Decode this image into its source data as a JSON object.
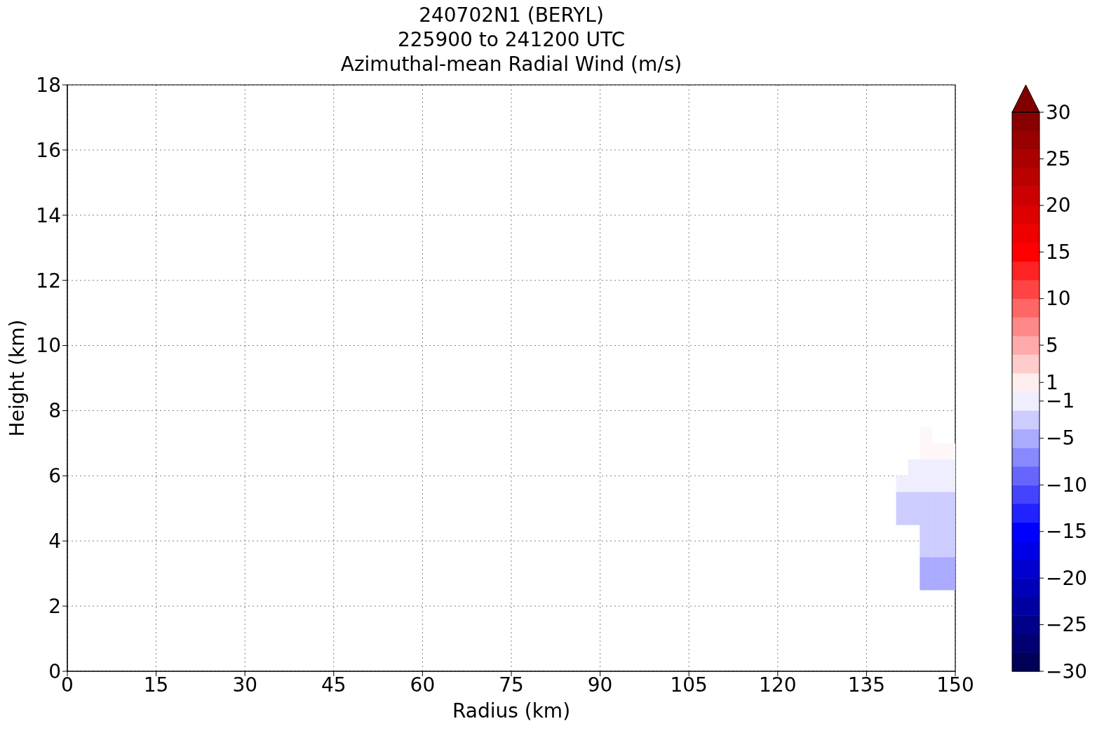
{
  "chart_data": {
    "type": "scatter",
    "title": "240702N1 (BERYL)\n225900 to 241200 UTC\nAzimuthal-mean Radial Wind (m/s)",
    "xlabel": "Radius (km)",
    "ylabel": "Height (km)",
    "marker": "square",
    "x": [
      145,
      145,
      147,
      149,
      143,
      145,
      147,
      149,
      141,
      143,
      145,
      147,
      149,
      141,
      143,
      145,
      147,
      149,
      141,
      143,
      145,
      147,
      149,
      145,
      147,
      149,
      145,
      147,
      149,
      145,
      147,
      149,
      145,
      147,
      149
    ],
    "values": [
      7.25,
      6.75,
      6.75,
      6.75,
      6.25,
      6.25,
      6.25,
      6.25,
      5.75,
      5.75,
      5.75,
      5.75,
      5.75,
      5.25,
      5.25,
      5.25,
      5.25,
      5.25,
      4.75,
      4.75,
      4.75,
      4.75,
      4.75,
      4.25,
      4.25,
      4.25,
      3.75,
      3.75,
      3.75,
      3.25,
      3.25,
      3.25,
      2.75,
      2.75,
      2.75
    ],
    "cvalues": [
      0.5,
      0.5,
      0.5,
      0.5,
      -1,
      -1,
      -1,
      -1,
      -1,
      -1,
      -1,
      -1,
      -1,
      -3,
      -3,
      -3,
      -3,
      -3,
      -3,
      -3,
      -3,
      -3,
      -3,
      -3,
      -3,
      -3,
      -3,
      -3,
      -3,
      -5,
      -5,
      -5,
      -5,
      -5,
      -5
    ],
    "xlim": [
      0,
      150
    ],
    "xticks": [
      0,
      15,
      30,
      45,
      60,
      75,
      90,
      105,
      120,
      135,
      150
    ],
    "ylim": [
      0,
      18
    ],
    "yticks": [
      0,
      2,
      4,
      6,
      8,
      10,
      12,
      14,
      16,
      18
    ],
    "grid": true,
    "clim": [
      -30,
      30
    ],
    "cticks": [
      {
        "value": -30,
        "label": "−30"
      },
      {
        "value": -25,
        "label": "−25"
      },
      {
        "value": -20,
        "label": "−20"
      },
      {
        "value": -15,
        "label": "−15"
      },
      {
        "value": -10,
        "label": "−10"
      },
      {
        "value": -5,
        "label": "−5"
      },
      {
        "value": -1,
        "label": "−1"
      },
      1,
      5,
      10,
      15,
      20,
      25,
      30
    ]
  }
}
